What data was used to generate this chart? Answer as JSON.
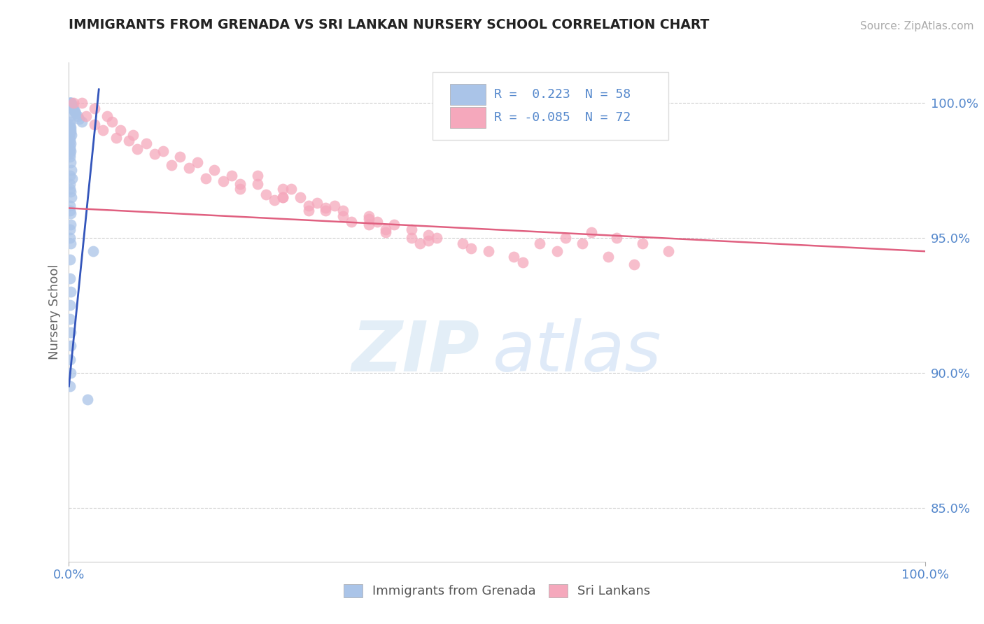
{
  "title": "IMMIGRANTS FROM GRENADA VS SRI LANKAN NURSERY SCHOOL CORRELATION CHART",
  "source": "Source: ZipAtlas.com",
  "ylabel": "Nursery School",
  "yticks_right": [
    100.0,
    95.0,
    90.0,
    85.0
  ],
  "ytick_labels_right": [
    "100.0%",
    "95.0%",
    "90.0%",
    "85.0%"
  ],
  "legend_blue_r": "R =  0.223",
  "legend_blue_n": "N = 58",
  "legend_pink_r": "R = -0.085",
  "legend_pink_n": "N = 72",
  "legend_label_blue": "Immigrants from Grenada",
  "legend_label_pink": "Sri Lankans",
  "blue_color": "#aac4e8",
  "pink_color": "#f5a8bc",
  "blue_line_color": "#3355bb",
  "pink_line_color": "#e06080",
  "blue_scatter_x": [
    0.05,
    0.1,
    0.15,
    0.2,
    0.25,
    0.3,
    0.35,
    0.4,
    0.5,
    0.6,
    0.7,
    0.8,
    1.0,
    1.2,
    1.5,
    0.1,
    0.15,
    0.2,
    0.25,
    0.3,
    0.1,
    0.15,
    0.2,
    0.1,
    0.2,
    0.15,
    0.1,
    0.2,
    0.3,
    0.4,
    0.1,
    0.2,
    0.3,
    0.1,
    0.15,
    0.2,
    0.25,
    0.1,
    0.15,
    0.2,
    2.8,
    0.1,
    0.15,
    0.2,
    0.1,
    0.15,
    0.2,
    0.25,
    0.1,
    0.2,
    0.15,
    2.2,
    0.1,
    0.15,
    0.2,
    0.1,
    0.15,
    0.1
  ],
  "blue_scatter_y": [
    100.0,
    100.0,
    100.0,
    100.0,
    100.0,
    100.0,
    99.9,
    99.8,
    99.8,
    99.7,
    99.7,
    99.6,
    99.5,
    99.4,
    99.3,
    99.2,
    99.1,
    99.0,
    98.9,
    98.8,
    98.7,
    98.6,
    98.5,
    98.3,
    98.2,
    98.1,
    98.0,
    97.8,
    97.5,
    97.2,
    97.0,
    96.7,
    96.5,
    96.2,
    96.0,
    95.9,
    95.5,
    95.3,
    95.0,
    94.8,
    94.5,
    94.2,
    93.5,
    93.0,
    92.5,
    92.0,
    91.5,
    91.0,
    90.5,
    90.0,
    89.5,
    89.0,
    99.5,
    99.3,
    99.1,
    98.4,
    97.3,
    96.8
  ],
  "pink_scatter_x": [
    0.5,
    1.5,
    3.0,
    4.5,
    5.0,
    6.0,
    7.5,
    9.0,
    11.0,
    13.0,
    15.0,
    17.0,
    19.0,
    22.0,
    25.0,
    27.0,
    29.0,
    32.0,
    35.0,
    38.0,
    40.0,
    43.0,
    46.0,
    49.0,
    52.0,
    55.0,
    58.0,
    61.0,
    64.0,
    67.0,
    70.0,
    3.0,
    5.5,
    8.0,
    12.0,
    16.0,
    20.0,
    24.0,
    28.0,
    33.0,
    37.0,
    41.0,
    2.0,
    4.0,
    7.0,
    10.0,
    14.0,
    18.0,
    23.0,
    30.0,
    36.0,
    42.0,
    47.0,
    53.0,
    57.0,
    60.0,
    63.0,
    66.0,
    22.0,
    26.0,
    31.0,
    35.0,
    25.0,
    30.0,
    35.0,
    40.0,
    20.0,
    25.0,
    28.0,
    32.0,
    37.0,
    42.0
  ],
  "pink_scatter_y": [
    100.0,
    100.0,
    99.8,
    99.5,
    99.3,
    99.0,
    98.8,
    98.5,
    98.2,
    98.0,
    97.8,
    97.5,
    97.3,
    97.0,
    96.8,
    96.5,
    96.3,
    96.0,
    95.8,
    95.5,
    95.3,
    95.0,
    94.8,
    94.5,
    94.3,
    94.8,
    95.0,
    95.2,
    95.0,
    94.8,
    94.5,
    99.2,
    98.7,
    98.3,
    97.7,
    97.2,
    96.8,
    96.4,
    96.0,
    95.6,
    95.2,
    94.8,
    99.5,
    99.0,
    98.6,
    98.1,
    97.6,
    97.1,
    96.6,
    96.1,
    95.6,
    95.1,
    94.6,
    94.1,
    94.5,
    94.8,
    94.3,
    94.0,
    97.3,
    96.8,
    96.2,
    95.7,
    96.5,
    96.0,
    95.5,
    95.0,
    97.0,
    96.5,
    96.2,
    95.8,
    95.3,
    94.9
  ],
  "blue_trendline_x": [
    0.0,
    3.5
  ],
  "blue_trendline_y": [
    89.5,
    100.5
  ],
  "pink_trendline_x": [
    0.0,
    100.0
  ],
  "pink_trendline_y": [
    96.1,
    94.5
  ],
  "xmin": 0.0,
  "xmax": 100.0,
  "ymin": 83.0,
  "ymax": 101.5,
  "watermark_zip": "ZIP",
  "watermark_atlas": "atlas",
  "background_color": "#ffffff",
  "grid_color": "#cccccc",
  "axis_color": "#aaaaaa",
  "title_color": "#222222",
  "right_label_color": "#5588cc",
  "source_color": "#aaaaaa"
}
